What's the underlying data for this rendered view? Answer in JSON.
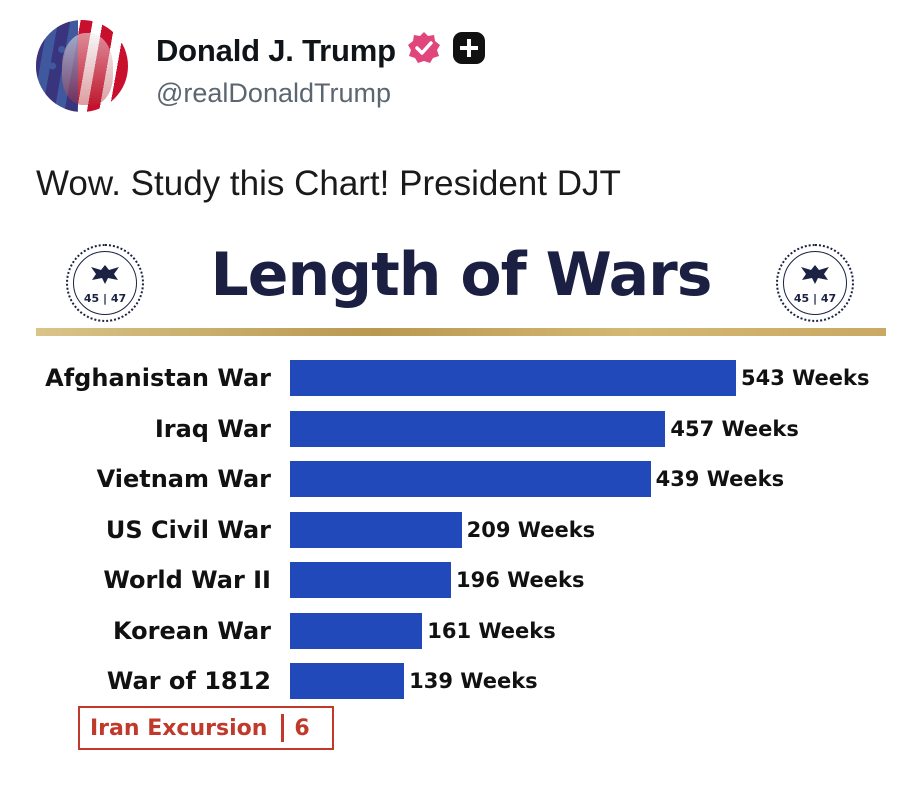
{
  "post": {
    "author_name": "Donald J. Trump",
    "handle": "@realDonaldTrump",
    "text": "Wow. Study this Chart! President DJT"
  },
  "icons": {
    "verified": "verified-badge-icon",
    "subscribe": "plus-icon"
  },
  "colors": {
    "verified_badge": "#e0457b",
    "bar": "#2149b9",
    "title": "#1b2043",
    "highlight": "#c0392b"
  },
  "seal_text": "45 | 47",
  "chart_data": {
    "type": "bar",
    "orientation": "horizontal",
    "title": "Length of Wars",
    "categories": [
      "Afghanistan War",
      "Iraq War",
      "Vietnam War",
      "US Civil War",
      "World War II",
      "Korean War",
      "War of 1812"
    ],
    "values": [
      543,
      457,
      439,
      209,
      196,
      161,
      139
    ],
    "value_labels": [
      "543 Weeks",
      "457 Weeks",
      "439 Weeks",
      "209 Weeks",
      "196 Weeks",
      "161 Weeks",
      "139 Weeks"
    ],
    "highlight": {
      "label": "Iran Excursion",
      "value": "6"
    }
  }
}
